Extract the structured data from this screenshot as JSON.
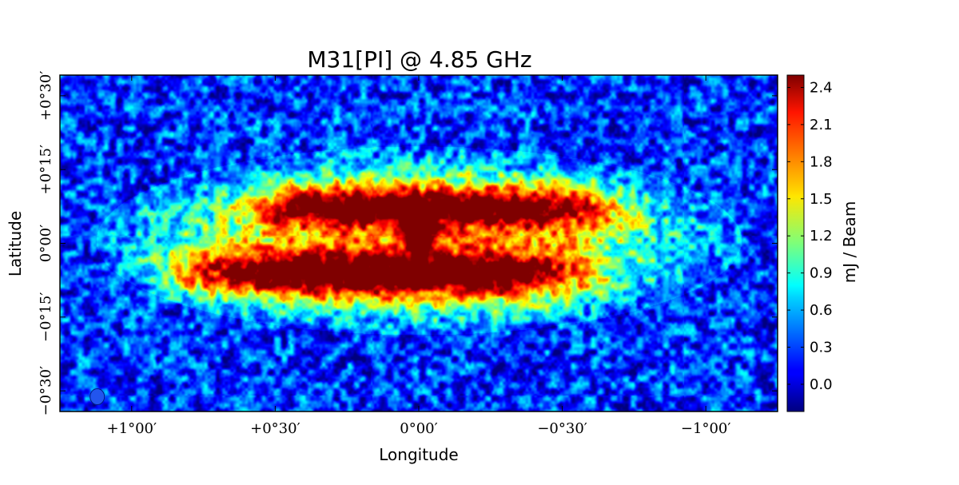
{
  "chart_data": {
    "type": "heatmap",
    "title": "M31[PI] @ 4.85 GHz",
    "xlabel": "Longitude",
    "ylabel": "Latitude",
    "x_ticks": [
      {
        "value": 1.0,
        "label": "+1°00′"
      },
      {
        "value": 0.5,
        "label": "+0°30′"
      },
      {
        "value": 0.0,
        "label": "0°00′"
      },
      {
        "value": -0.5,
        "label": "−0°30′"
      },
      {
        "value": -1.0,
        "label": "−1°00′"
      }
    ],
    "y_ticks": [
      {
        "value": 0.5,
        "label": "+0°30′"
      },
      {
        "value": 0.25,
        "label": "+0°15′"
      },
      {
        "value": 0.0,
        "label": "0°00′"
      },
      {
        "value": -0.25,
        "label": "−0°15′"
      },
      {
        "value": -0.5,
        "label": "−0°30′"
      }
    ],
    "xlim": [
      1.25,
      -1.25
    ],
    "ylim": [
      -0.57,
      0.57
    ],
    "colorbar": {
      "label": "mJ / Beam",
      "colormap": "jet",
      "range": [
        -0.22,
        2.5
      ],
      "ticks": [
        {
          "value": 2.4,
          "label": "2.4"
        },
        {
          "value": 2.1,
          "label": "2.1"
        },
        {
          "value": 1.8,
          "label": "1.8"
        },
        {
          "value": 1.5,
          "label": "1.5"
        },
        {
          "value": 1.2,
          "label": "1.2"
        },
        {
          "value": 0.9,
          "label": "0.9"
        },
        {
          "value": 0.6,
          "label": "0.6"
        },
        {
          "value": 0.3,
          "label": "0.3"
        },
        {
          "value": 0.0,
          "label": "0.0"
        }
      ]
    },
    "features": {
      "ring_arms": [
        {
          "center_lon": -0.05,
          "center_lat": 0.12,
          "half_length_deg": 0.62,
          "half_width_deg": 0.07,
          "peak_mjy": 2.35
        },
        {
          "center_lon": 0.15,
          "center_lat": -0.1,
          "half_length_deg": 0.72,
          "half_width_deg": 0.08,
          "peak_mjy": 2.4
        }
      ],
      "nucleus": {
        "lon": 0.0,
        "lat": 0.03,
        "peak_mjy": 2.4
      },
      "envelope": {
        "half_length_deg": 0.95,
        "half_width_deg": 0.27,
        "level_mjy": 1.1
      },
      "noise_rms_mjy": 0.3,
      "beam_marker": {
        "lon": 1.12,
        "lat": -0.52,
        "color": "#2255ee"
      }
    }
  }
}
